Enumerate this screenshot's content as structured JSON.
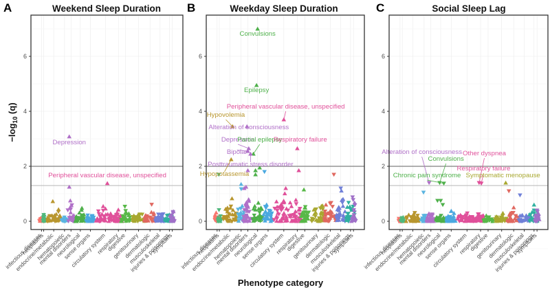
{
  "figure": {
    "x_axis_title": "Phenotype category",
    "y_axis_title_parts": [
      "−log",
      "10",
      " (q)"
    ]
  },
  "category_colors": {
    "infectious diseases": "#F8766D",
    "neoplasms": "#50B87C",
    "endocrine/metabolic": "#B8962E",
    "hematopoietic": "#5AB4E0",
    "mental disorders": "#B070C8",
    "neurological": "#4EB04A",
    "sense organs": "#4AA8E0",
    "circulatory system": "#E0509A",
    "respiratory": "#E0509A",
    "digestive": "#58B848",
    "genitourinary": "#A8A830",
    "dermatologic": "#E06860",
    "musculoskeletal": "#7080D8",
    "injuries & poisonings": "#30B0A0",
    "symptoms": "#A070C8"
  },
  "chart_data": [
    {
      "panel": "A",
      "type": "scatter",
      "title": "Weekend Sleep Duration",
      "xlabel": "Phenotype category",
      "ylabel": "-log10 (q)",
      "ylim": [
        -0.3,
        7.5
      ],
      "yticks": [
        0,
        2,
        4,
        6
      ],
      "reference_lines": [
        2.0,
        1.3
      ],
      "categories": [
        "infectious diseases",
        "neoplasms",
        "endocrine/metabolic",
        "hematopoietic",
        "mental disorders",
        "neurological",
        "sense organs",
        "circulatory system",
        "respiratory",
        "digestive",
        "genitourinary",
        "dermatologic",
        "musculoskeletal",
        "injuries & poisonings",
        "symptoms"
      ],
      "background_max": [
        0.3,
        0.35,
        0.65,
        0.25,
        0.65,
        0.55,
        0.3,
        0.55,
        0.4,
        0.55,
        0.35,
        0.62,
        0.35,
        0.45,
        0.65
      ],
      "annotated_points": [
        {
          "label": "Depression",
          "category": "mental disorders",
          "x": 0.3,
          "y": 3.08,
          "dir": "up",
          "lx": 0.3,
          "ly": 2.8
        },
        {
          "label": "Peripheral vascular disease, unspecified",
          "category": "circulatory system",
          "x": 0.6,
          "y": 1.38,
          "dir": "up",
          "lx": 0.6,
          "ly": 1.6
        }
      ],
      "other_points": [
        {
          "category": "mental disorders",
          "x": 0.3,
          "y": 1.25,
          "dir": "up"
        }
      ]
    },
    {
      "panel": "B",
      "type": "scatter",
      "title": "Weekday Sleep Duration",
      "xlabel": "Phenotype category",
      "ylabel": "-log10 (q)",
      "ylim": [
        -0.3,
        7.5
      ],
      "yticks": [
        0,
        2,
        4,
        6
      ],
      "reference_lines": [
        2.0,
        1.3
      ],
      "categories": [
        "infectious diseases",
        "neoplasms",
        "endocrine/metabolic",
        "hematopoietic",
        "mental disorders",
        "neurological",
        "sense organs",
        "circulatory system",
        "respiratory",
        "digestive",
        "genitourinary",
        "dermatologic",
        "musculoskeletal",
        "injuries & poisonings",
        "symptoms"
      ],
      "background_max": [
        0.5,
        0.45,
        1.1,
        1.2,
        1.0,
        0.95,
        0.8,
        1.2,
        1.2,
        0.9,
        0.8,
        1.1,
        1.1,
        0.95,
        1.0
      ],
      "annotated_points": [
        {
          "label": "Convulsions",
          "category": "neurological",
          "x": 0.5,
          "y": 7.0,
          "dir": "up",
          "lx": 0.5,
          "ly": 6.75
        },
        {
          "label": "Epilepsy",
          "category": "neurological",
          "x": 0.4,
          "y": 4.95,
          "dir": "up",
          "lx": 0.4,
          "ly": 4.7
        },
        {
          "label": "Peripheral vascular disease, unspecified",
          "category": "circulatory system",
          "x": 0.5,
          "y": 3.7,
          "dir": "up",
          "lx": 0.6,
          "ly": 4.1
        },
        {
          "label": "Hypovolemia",
          "category": "endocrine/metabolic",
          "x": 0.7,
          "y": 3.45,
          "dir": "up",
          "lx": 0.2,
          "ly": 3.8
        },
        {
          "label": "Alteration of consciousness",
          "category": "mental disorders",
          "x": 0.4,
          "y": 3.45,
          "dir": "up",
          "lx": 0.6,
          "ly": 3.35
        },
        {
          "label": "Depression",
          "category": "mental disorders",
          "x": 0.6,
          "y": 2.65,
          "dir": "up",
          "lx": -0.6,
          "ly": 2.9
        },
        {
          "label": "Partial epilepsy",
          "category": "neurological",
          "x": 0.1,
          "y": 2.45,
          "dir": "up",
          "lx": 0.7,
          "ly": 2.9
        },
        {
          "label": "Respiratory failure",
          "category": "respiratory",
          "x": 0.5,
          "y": 2.65,
          "dir": "up",
          "lx": 0.9,
          "ly": 2.9
        },
        {
          "label": "Bipolar",
          "category": "mental disorders",
          "x": 0.5,
          "y": 2.55,
          "dir": "up",
          "lx": -0.7,
          "ly": 2.45
        },
        {
          "label": "Posttraumatic stress disorder",
          "category": "mental disorders",
          "x": 0.8,
          "y": 2.45,
          "dir": "up",
          "lx": 0.8,
          "ly": 2.0
        },
        {
          "label": "Hypopotassemia",
          "category": "endocrine/metabolic",
          "x": 0.6,
          "y": 2.25,
          "dir": "up",
          "lx": 0.1,
          "ly": 1.65
        }
      ],
      "other_points": [
        {
          "category": "mental disorders",
          "x": 0.5,
          "y": 1.85,
          "dir": "up"
        },
        {
          "category": "neurological",
          "x": 0.3,
          "y": 1.85,
          "dir": "up"
        },
        {
          "category": "neurological",
          "x": 0.7,
          "y": 1.95,
          "dir": "up"
        },
        {
          "category": "sense organs",
          "x": 0.1,
          "y": 1.8,
          "dir": "down"
        },
        {
          "category": "neurological",
          "x": 0.3,
          "y": 1.7,
          "dir": "up"
        },
        {
          "category": "neoplasms",
          "x": 0.3,
          "y": 1.7,
          "dir": "down"
        },
        {
          "category": "respiratory",
          "x": 0.7,
          "y": 1.85,
          "dir": "up"
        },
        {
          "category": "dermatologic",
          "x": 0.8,
          "y": 1.7,
          "dir": "down"
        },
        {
          "category": "hematopoietic",
          "x": 0.5,
          "y": 1.35,
          "dir": "up"
        },
        {
          "category": "mental disorders",
          "x": 0.1,
          "y": 1.2,
          "dir": "up"
        },
        {
          "category": "mental disorders",
          "x": 0.3,
          "y": 1.25,
          "dir": "up"
        },
        {
          "category": "circulatory system",
          "x": 0.6,
          "y": 1.2,
          "dir": "up"
        },
        {
          "category": "digestive",
          "x": 0.4,
          "y": 1.15,
          "dir": "up"
        },
        {
          "category": "musculoskeletal",
          "x": 0.5,
          "y": 1.2,
          "dir": "down"
        }
      ]
    },
    {
      "panel": "C",
      "type": "scatter",
      "title": "Social Sleep Lag",
      "xlabel": "Phenotype category",
      "ylabel": "-log10 (q)",
      "ylim": [
        -0.3,
        7.5
      ],
      "yticks": [
        0,
        2,
        4,
        6
      ],
      "reference_lines": [
        2.0,
        1.3
      ],
      "categories": [
        "infectious diseases",
        "neoplasms",
        "endocrine/metabolic",
        "hematopoietic",
        "mental disorders",
        "neurological",
        "sense organs",
        "circulatory system",
        "respiratory",
        "digestive",
        "genitourinary",
        "dermatologic",
        "musculoskeletal",
        "injuries & poisonings",
        "symptoms"
      ],
      "background_max": [
        0.2,
        0.2,
        0.4,
        0.4,
        0.4,
        0.45,
        0.35,
        0.4,
        0.4,
        0.35,
        0.35,
        0.5,
        0.4,
        0.6,
        0.4
      ],
      "annotated_points": [
        {
          "label": "Alteration of consciousness",
          "category": "mental disorders",
          "x": 0.3,
          "y": 1.4,
          "dir": "down",
          "lx": -0.5,
          "ly": 2.45
        },
        {
          "label": "Convulsions",
          "category": "neurological",
          "x": 0.4,
          "y": 1.4,
          "dir": "down",
          "lx": 1.0,
          "ly": 2.2
        },
        {
          "label": "Chronic pain syndrome",
          "category": "neurological",
          "x": 0.8,
          "y": 1.38,
          "dir": "down",
          "lx": -0.8,
          "ly": 1.6
        },
        {
          "label": "Other dyspnea",
          "category": "respiratory",
          "x": 0.3,
          "y": 1.4,
          "dir": "down",
          "lx": 1.0,
          "ly": 2.4
        },
        {
          "label": "Respiratory failure",
          "category": "respiratory",
          "x": 0.6,
          "y": 1.38,
          "dir": "down",
          "lx": 0.9,
          "ly": 1.85
        },
        {
          "label": "Symptomatic menopause",
          "category": "genitourinary",
          "x": 0.8,
          "y": 1.4,
          "dir": "up",
          "lx": 0.6,
          "ly": 1.6
        }
      ],
      "other_points": [
        {
          "category": "hematopoietic",
          "x": 0.4,
          "y": 1.05,
          "dir": "down"
        },
        {
          "category": "neurological",
          "x": 0.2,
          "y": 0.75,
          "dir": "down"
        },
        {
          "category": "neurological",
          "x": 0.5,
          "y": 0.75,
          "dir": "down"
        },
        {
          "category": "neurological",
          "x": 0.7,
          "y": 0.6,
          "dir": "down"
        },
        {
          "category": "dermatologic",
          "x": 0.1,
          "y": 1.1,
          "dir": "down"
        },
        {
          "category": "musculoskeletal",
          "x": 0.1,
          "y": 0.95,
          "dir": "down"
        },
        {
          "category": "dermatologic",
          "x": 0.5,
          "y": 0.5,
          "dir": "up"
        },
        {
          "category": "injuries & poisonings",
          "x": 0.5,
          "y": 0.6,
          "dir": "up"
        },
        {
          "category": "injuries & poisonings",
          "x": 0.5,
          "y": 0.4,
          "dir": "down"
        },
        {
          "category": "symptoms",
          "x": 0.5,
          "y": 0.4,
          "dir": "down"
        }
      ]
    }
  ]
}
